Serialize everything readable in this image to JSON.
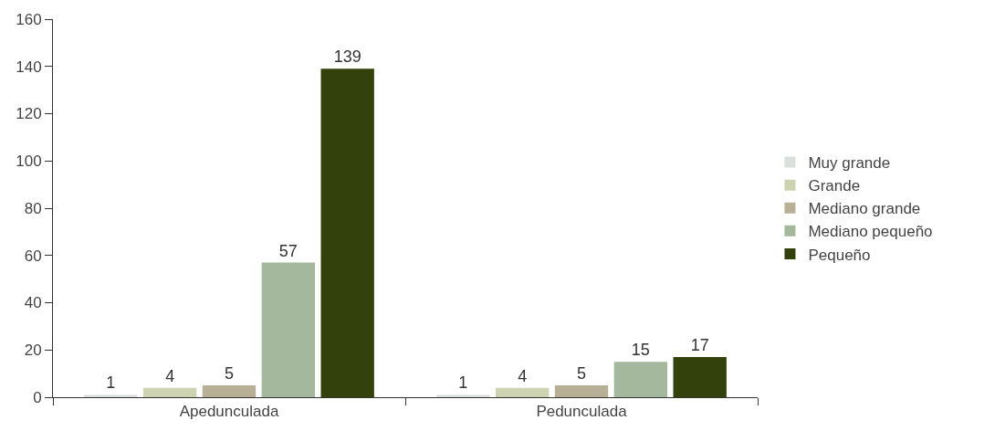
{
  "chart_data": {
    "type": "bar",
    "categories": [
      "Apedunculada",
      "Pedunculada"
    ],
    "series": [
      {
        "name": "Muy grande",
        "color": "#d9e0dc",
        "values": [
          1,
          1
        ]
      },
      {
        "name": "Grande",
        "color": "#cdd3b0",
        "values": [
          4,
          4
        ]
      },
      {
        "name": "Mediano grande",
        "color": "#b8b096",
        "values": [
          5,
          5
        ]
      },
      {
        "name": "Mediano pequeño",
        "color": "#a3b89c",
        "values": [
          57,
          15
        ]
      },
      {
        "name": "Pequeño",
        "color": "#33420c",
        "values": [
          139,
          17
        ]
      }
    ],
    "ylim": [
      0,
      160
    ],
    "yticks": [
      0,
      20,
      40,
      60,
      80,
      100,
      120,
      140,
      160
    ],
    "data_labels": true,
    "legend": "right"
  }
}
